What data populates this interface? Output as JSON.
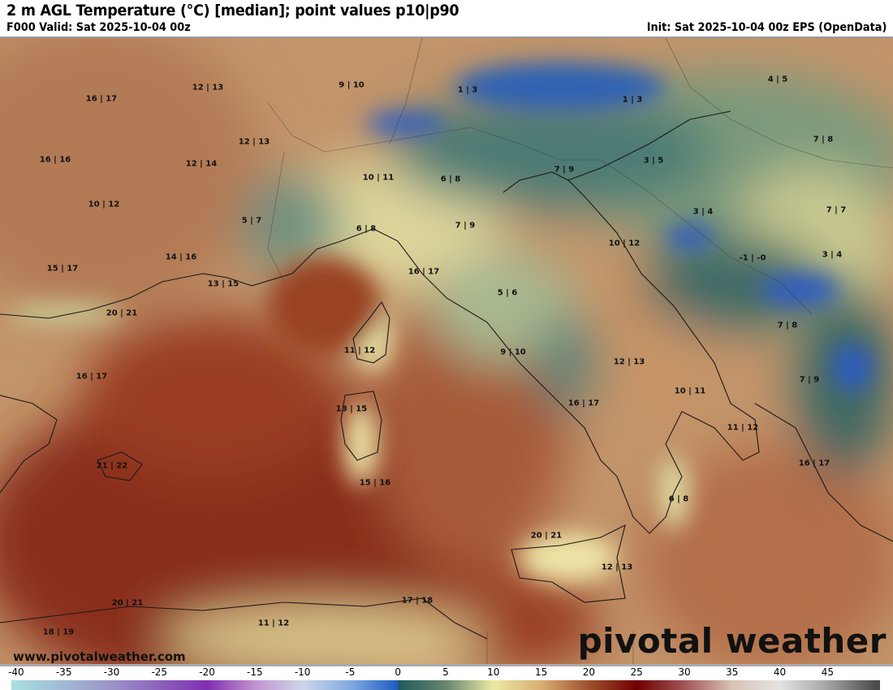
{
  "header": {
    "title": "2 m AGL Temperature (°C) [median]; point values p10|p90",
    "valid": "F000 Valid: Sat 2025-10-04 00z",
    "init": "Init: Sat 2025-10-04 00z EPS (OpenData)"
  },
  "point_values": [
    "16 | 17",
    "12 | 13",
    "9 | 10",
    "1 | 3",
    "1 | 3",
    "4 | 5",
    "16 | 16",
    "12 | 13",
    "12 | 14",
    "10 | 11",
    "6 | 8",
    "7 | 9",
    "3 | 5",
    "7 | 8",
    "10 | 12",
    "5 | 7",
    "7 | 9",
    "3 | 4",
    "7 | 7",
    "6 | 8",
    "14 | 16",
    "10 | 12",
    "15 | 17",
    "16 | 17",
    "-1 | -0",
    "3 | 4",
    "13 | 15",
    "5 | 6",
    "20 | 21",
    "7 | 8",
    "11 | 12",
    "9 | 10",
    "12 | 13",
    "16 | 17",
    "7 | 9",
    "10 | 11",
    "16 | 17",
    "13 | 15",
    "11 | 12",
    "16 | 17",
    "21 | 22",
    "15 | 16",
    "6 | 8",
    "20 | 21",
    "12 | 13",
    "17 | 18",
    "20 | 21",
    "11 | 12",
    "18 | 19"
  ],
  "footer": {
    "website": "www.pivotalweather.com",
    "logo": "pivotal weather"
  },
  "colorbar": {
    "ticks": [
      "-40",
      "-35",
      "-30",
      "-25",
      "-20",
      "-15",
      "-10",
      "-5",
      "0",
      "5",
      "10",
      "15",
      "20",
      "25",
      "30",
      "35",
      "40",
      "45"
    ],
    "stops": [
      {
        "v": -40,
        "c": "#a8dde0"
      },
      {
        "v": -30,
        "c": "#9a94c8"
      },
      {
        "v": -20,
        "c": "#7f2fb0"
      },
      {
        "v": -15,
        "c": "#c292d0"
      },
      {
        "v": -10,
        "c": "#cdd6ea"
      },
      {
        "v": -5,
        "c": "#82aae0"
      },
      {
        "v": 0,
        "c": "#1f5cc0"
      },
      {
        "v": 0.01,
        "c": "#1f5a5c"
      },
      {
        "v": 5,
        "c": "#66856e"
      },
      {
        "v": 10,
        "c": "#ece9a2"
      },
      {
        "v": 15,
        "c": "#d8ae72"
      },
      {
        "v": 20,
        "c": "#a0502e"
      },
      {
        "v": 25,
        "c": "#6e0000"
      },
      {
        "v": 30,
        "c": "#a25456"
      },
      {
        "v": 35,
        "c": "#d8c2b4"
      },
      {
        "v": 40,
        "c": "#e4e4e4"
      },
      {
        "v": 45,
        "c": "#a4a4a4"
      },
      {
        "v": 50,
        "c": "#4c4c4c"
      }
    ]
  }
}
